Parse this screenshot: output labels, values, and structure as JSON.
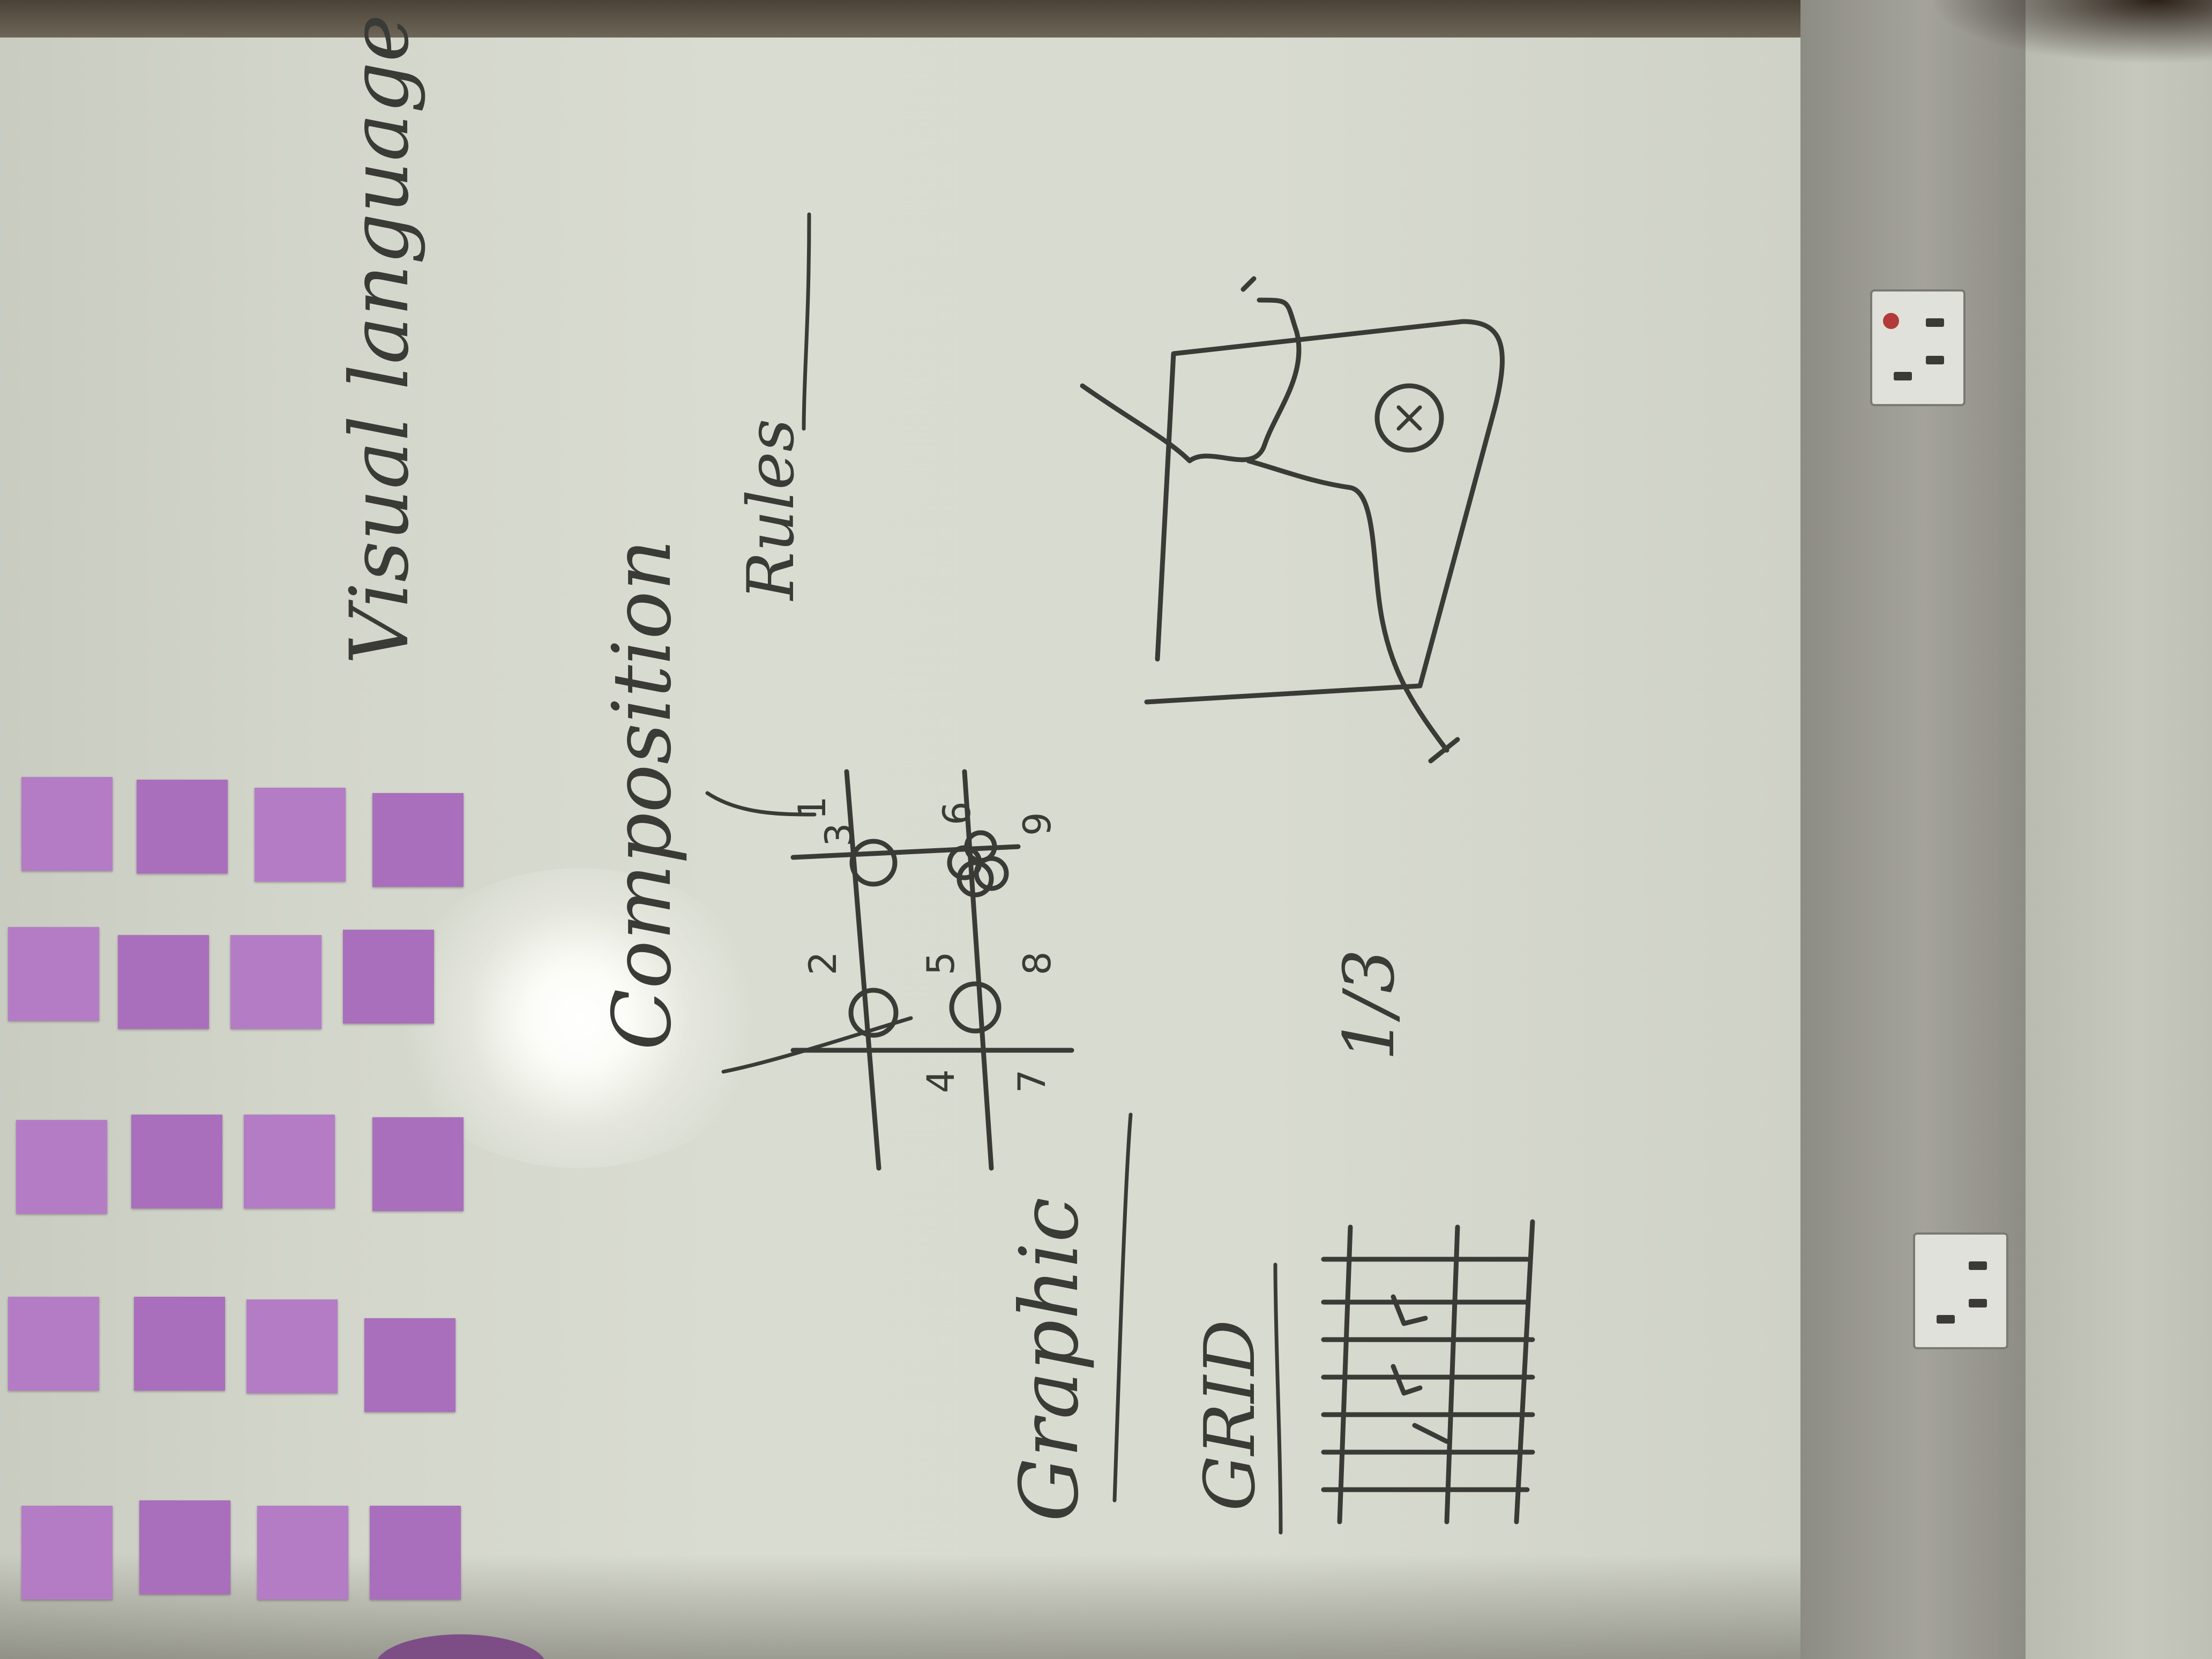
{
  "whiteboard": {
    "headings": {
      "visual_language": "Visual language",
      "composition": "Composition",
      "rules": "Rules",
      "graphic": "Graphic",
      "grid": "GRID",
      "thirds": "1/3"
    },
    "grid_numbers": [
      "1",
      "2",
      "3",
      "4",
      "5",
      "6",
      "7",
      "8",
      "9"
    ]
  },
  "sticky_notes": {
    "color": "#b57cc6",
    "count": 20
  }
}
